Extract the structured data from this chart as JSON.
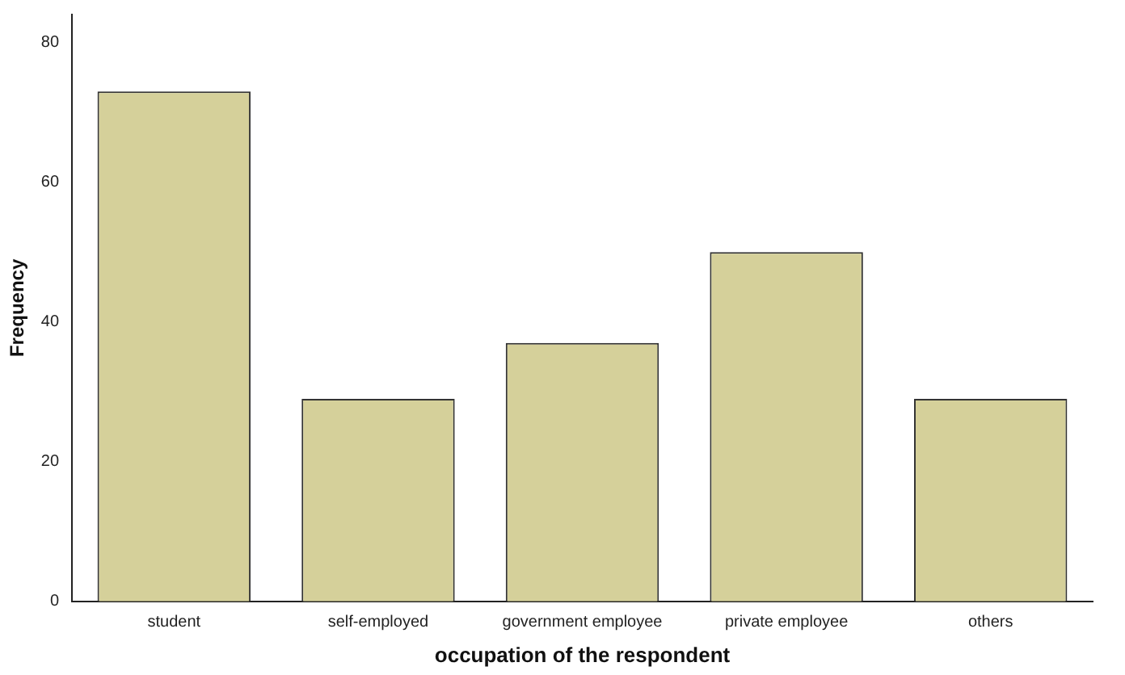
{
  "chart_data": {
    "type": "bar",
    "xlabel": "occupation of the respondent",
    "ylabel": "Frequency",
    "categories": [
      "student",
      "self-employed",
      "government employee",
      "private employee",
      "others"
    ],
    "values": [
      73,
      29,
      37,
      50,
      29
    ],
    "color": "#d5d09a",
    "ylim": [
      0,
      84
    ],
    "yticks": [
      0,
      20,
      40,
      60,
      80
    ],
    "grid": false,
    "legend": false
  }
}
